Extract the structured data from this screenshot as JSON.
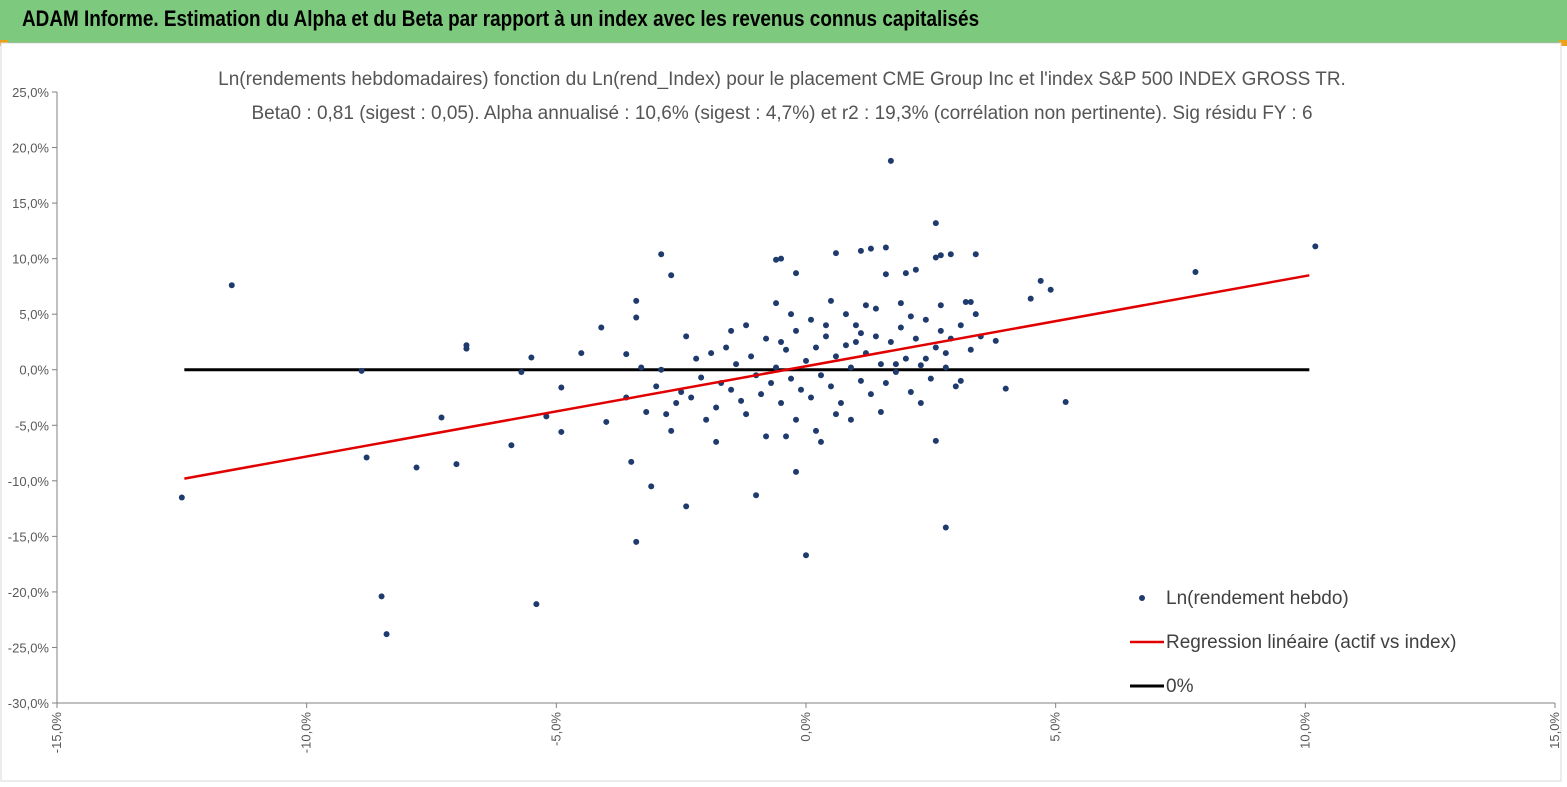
{
  "banner": {
    "title": "ADAM Informe. Estimation du Alpha et du Beta par rapport à un index avec les revenus connus capitalisés",
    "background": "#7dc97d"
  },
  "chart_data": {
    "type": "scatter",
    "title": "Ln(rendements hebdomadaires) fonction du Ln(rend_Index) pour le placement CME Group Inc et l'index S&P 500 INDEX GROSS TR.",
    "subtitle": "Beta0 : 0,81 (sigest : 0,05). Alpha annualisé : 10,6% (sigest : 4,7%) et r2 : 19,3% (corrélation non pertinente). Sig résidu FY : 6",
    "xlabel": "",
    "ylabel": "",
    "xlim": [
      -0.15,
      0.15
    ],
    "ylim": [
      -0.3,
      0.25
    ],
    "xticks": [
      -0.15,
      -0.1,
      -0.05,
      0.0,
      0.05,
      0.1,
      0.15
    ],
    "xtick_labels": [
      "-15,0%",
      "-10,0%",
      "-5,0%",
      "0,0%",
      "5,0%",
      "10,0%",
      "15,0%"
    ],
    "yticks": [
      0.25,
      0.2,
      0.15,
      0.1,
      0.05,
      0.0,
      -0.05,
      -0.1,
      -0.15,
      -0.2,
      -0.25,
      -0.3
    ],
    "ytick_labels": [
      "25,0%",
      "20,0%",
      "15,0%",
      "10,0%",
      "5,0%",
      "0,0%",
      "-5,0%",
      "-10,0%",
      "-15,0%",
      "-20,0%",
      "-25,0%",
      "-30,0%"
    ],
    "grid": false,
    "legend_position": "bottom-right",
    "colors": {
      "points": "#1f3b6e",
      "regression": "#e00000",
      "zero": "#000000"
    },
    "series": [
      {
        "name": "Ln(rendement hebdo)",
        "kind": "scatter",
        "points": [
          [
            -0.125,
            -0.115
          ],
          [
            -0.115,
            0.076
          ],
          [
            -0.089,
            -0.001
          ],
          [
            -0.088,
            -0.079
          ],
          [
            -0.085,
            -0.204
          ],
          [
            -0.084,
            -0.238
          ],
          [
            -0.078,
            -0.088
          ],
          [
            -0.073,
            -0.043
          ],
          [
            -0.07,
            -0.085
          ],
          [
            -0.068,
            0.022
          ],
          [
            -0.068,
            0.019
          ],
          [
            -0.059,
            -0.068
          ],
          [
            -0.057,
            -0.002
          ],
          [
            -0.055,
            0.011
          ],
          [
            -0.054,
            -0.211
          ],
          [
            -0.052,
            -0.042
          ],
          [
            -0.049,
            -0.056
          ],
          [
            -0.049,
            -0.016
          ],
          [
            -0.045,
            0.015
          ],
          [
            -0.041,
            0.038
          ],
          [
            -0.04,
            -0.047
          ],
          [
            -0.036,
            0.014
          ],
          [
            -0.035,
            -0.083
          ],
          [
            -0.034,
            0.047
          ],
          [
            -0.034,
            0.062
          ],
          [
            -0.034,
            -0.155
          ],
          [
            -0.031,
            -0.105
          ],
          [
            -0.029,
            0.104
          ],
          [
            -0.027,
            0.085
          ],
          [
            -0.024,
            -0.123
          ],
          [
            -0.01,
            -0.113
          ],
          [
            -0.006,
            0.099
          ],
          [
            -0.005,
            0.1
          ],
          [
            -0.004,
            -0.06
          ],
          [
            -0.002,
            -0.092
          ],
          [
            0.0,
            -0.167
          ],
          [
            -0.002,
            0.087
          ],
          [
            0.003,
            -0.065
          ],
          [
            0.006,
            0.105
          ],
          [
            0.011,
            0.107
          ],
          [
            0.013,
            0.109
          ],
          [
            0.016,
            0.11
          ],
          [
            0.016,
            0.086
          ],
          [
            0.017,
            0.188
          ],
          [
            0.02,
            0.087
          ],
          [
            0.022,
            0.09
          ],
          [
            0.026,
            0.132
          ],
          [
            0.026,
            0.101
          ],
          [
            0.026,
            -0.064
          ],
          [
            0.027,
            0.103
          ],
          [
            0.028,
            -0.142
          ],
          [
            0.029,
            0.104
          ],
          [
            0.034,
            0.104
          ],
          [
            0.032,
            0.061
          ],
          [
            0.033,
            0.061
          ],
          [
            0.038,
            0.026
          ],
          [
            0.04,
            -0.017
          ],
          [
            0.045,
            0.064
          ],
          [
            0.047,
            0.08
          ],
          [
            0.049,
            0.072
          ],
          [
            0.052,
            -0.029
          ],
          [
            0.078,
            0.088
          ],
          [
            0.102,
            0.111
          ],
          [
            -0.032,
            -0.038
          ],
          [
            -0.03,
            -0.015
          ],
          [
            -0.028,
            -0.04
          ],
          [
            -0.026,
            -0.03
          ],
          [
            -0.025,
            -0.02
          ],
          [
            -0.023,
            -0.025
          ],
          [
            -0.022,
            0.01
          ],
          [
            -0.021,
            -0.007
          ],
          [
            -0.02,
            -0.045
          ],
          [
            -0.019,
            0.015
          ],
          [
            -0.018,
            -0.034
          ],
          [
            -0.017,
            -0.012
          ],
          [
            -0.016,
            0.02
          ],
          [
            -0.015,
            -0.018
          ],
          [
            -0.014,
            0.005
          ],
          [
            -0.013,
            -0.028
          ],
          [
            -0.012,
            -0.04
          ],
          [
            -0.011,
            0.012
          ],
          [
            -0.01,
            -0.005
          ],
          [
            -0.009,
            -0.022
          ],
          [
            -0.008,
            0.028
          ],
          [
            -0.007,
            -0.012
          ],
          [
            -0.006,
            0.002
          ],
          [
            -0.005,
            -0.03
          ],
          [
            -0.004,
            0.018
          ],
          [
            -0.003,
            -0.008
          ],
          [
            -0.002,
            0.035
          ],
          [
            -0.001,
            -0.018
          ],
          [
            0.0,
            0.008
          ],
          [
            0.001,
            -0.025
          ],
          [
            0.002,
            0.02
          ],
          [
            0.003,
            -0.005
          ],
          [
            0.004,
            0.03
          ],
          [
            0.005,
            -0.015
          ],
          [
            0.006,
            0.012
          ],
          [
            0.007,
            -0.03
          ],
          [
            0.008,
            0.022
          ],
          [
            0.009,
            0.002
          ],
          [
            0.01,
            0.04
          ],
          [
            0.011,
            -0.01
          ],
          [
            0.012,
            0.015
          ],
          [
            0.013,
            -0.022
          ],
          [
            0.014,
            0.03
          ],
          [
            0.015,
            0.005
          ],
          [
            0.016,
            -0.012
          ],
          [
            0.017,
            0.025
          ],
          [
            0.018,
            -0.002
          ],
          [
            0.019,
            0.038
          ],
          [
            0.02,
            0.01
          ],
          [
            0.021,
            -0.02
          ],
          [
            0.022,
            0.028
          ],
          [
            0.023,
            0.004
          ],
          [
            0.024,
            0.045
          ],
          [
            0.025,
            -0.008
          ],
          [
            0.026,
            0.02
          ],
          [
            0.027,
            0.035
          ],
          [
            0.028,
            0.002
          ],
          [
            0.029,
            0.028
          ],
          [
            0.03,
            -0.015
          ],
          [
            0.031,
            0.04
          ],
          [
            0.033,
            0.018
          ],
          [
            0.035,
            0.03
          ],
          [
            -0.036,
            -0.025
          ],
          [
            -0.033,
            0.002
          ],
          [
            -0.027,
            -0.055
          ],
          [
            -0.024,
            0.03
          ],
          [
            -0.018,
            -0.065
          ],
          [
            -0.012,
            0.04
          ],
          [
            -0.008,
            -0.06
          ],
          [
            -0.003,
            0.05
          ],
          [
            0.002,
            -0.055
          ],
          [
            0.005,
            0.062
          ],
          [
            0.009,
            -0.045
          ],
          [
            0.012,
            0.058
          ],
          [
            0.015,
            -0.038
          ],
          [
            0.019,
            0.06
          ],
          [
            0.023,
            -0.03
          ],
          [
            0.027,
            0.058
          ],
          [
            0.031,
            -0.01
          ],
          [
            0.034,
            0.05
          ],
          [
            -0.029,
            0.0
          ],
          [
            -0.015,
            0.035
          ],
          [
            -0.006,
            0.06
          ],
          [
            0.001,
            0.045
          ],
          [
            0.008,
            0.05
          ],
          [
            0.014,
            0.055
          ],
          [
            0.018,
            0.005
          ],
          [
            0.021,
            0.048
          ],
          [
            0.024,
            0.01
          ],
          [
            0.028,
            0.015
          ],
          [
            0.01,
            0.025
          ],
          [
            0.006,
            -0.04
          ],
          [
            -0.002,
            -0.045
          ],
          [
            0.004,
            0.04
          ],
          [
            0.011,
            0.033
          ],
          [
            -0.005,
            0.025
          ]
        ]
      },
      {
        "name": "Regression linéaire (actif vs index)",
        "kind": "line",
        "points": [
          [
            -0.1245,
            -0.098
          ],
          [
            0.1008,
            0.085
          ]
        ]
      },
      {
        "name": "0%",
        "kind": "line",
        "points": [
          [
            -0.1245,
            0.0
          ],
          [
            0.1008,
            0.0
          ]
        ]
      }
    ]
  }
}
